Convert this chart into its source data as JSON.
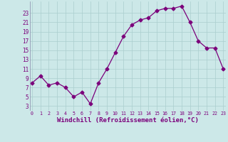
{
  "x": [
    0,
    1,
    2,
    3,
    4,
    5,
    6,
    7,
    8,
    9,
    10,
    11,
    12,
    13,
    14,
    15,
    16,
    17,
    18,
    19,
    20,
    21,
    22,
    23
  ],
  "y": [
    8,
    9.5,
    7.5,
    8,
    7,
    5,
    6,
    3.5,
    8,
    11,
    14.5,
    18,
    20.5,
    21.5,
    22,
    23.5,
    24,
    24,
    24.5,
    21,
    17,
    15.5,
    15.5,
    11
  ],
  "line_color": "#7B007B",
  "marker": "D",
  "markersize": 2.5,
  "linewidth": 0.9,
  "bg_color": "#cce8e8",
  "grid_color": "#aacece",
  "xlabel": "Windchill (Refroidissement éolien,°C)",
  "xlabel_fontsize": 6.5,
  "ytick_labels": [
    "3",
    "5",
    "7",
    "9",
    "11",
    "13",
    "15",
    "17",
    "19",
    "21",
    "23"
  ],
  "ytick_vals": [
    3,
    5,
    7,
    9,
    11,
    13,
    15,
    17,
    19,
    21,
    23
  ],
  "xtick_vals": [
    0,
    1,
    2,
    3,
    4,
    5,
    6,
    7,
    8,
    9,
    10,
    11,
    12,
    13,
    14,
    15,
    16,
    17,
    18,
    19,
    20,
    21,
    22,
    23
  ],
  "xlim": [
    -0.3,
    23.3
  ],
  "ylim": [
    2,
    25.5
  ]
}
